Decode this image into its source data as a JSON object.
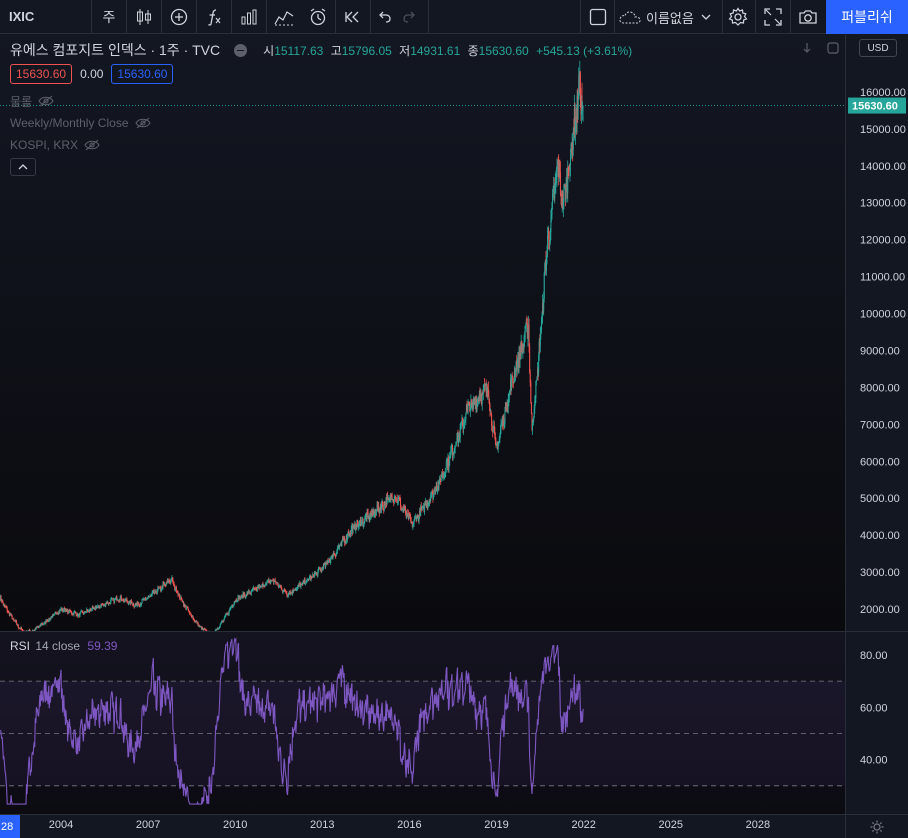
{
  "toolbar": {
    "symbol": "IXIC",
    "interval": "주",
    "layout_name": "이름없음",
    "publish_label": "퍼블리쉬"
  },
  "legend": {
    "title": "유에스 컴포지트 인덱스 · 1주 · TVC",
    "open_label": "시",
    "open": "15117.63",
    "high_label": "고",
    "high": "15796.05",
    "low_label": "저",
    "low": "14931.61",
    "close_label": "종",
    "close": "15630.60",
    "change": "+545.13 (+3.61%)",
    "bid": "15630.60",
    "spread": "0.00",
    "ask": "15630.60",
    "indicators": [
      "물롤",
      "Weekly/Monthly Close",
      "KOSPI, KRX"
    ]
  },
  "currency": "USD",
  "price_tag": "15630.60",
  "rsi_legend": {
    "name": "RSI",
    "params": "14 close",
    "value": "59.39"
  },
  "colors": {
    "background": "#131722",
    "up": "#26a69a",
    "down": "#ef5350",
    "rsi_line": "#7e57c2",
    "accent": "#2962ff"
  },
  "chart_data": [
    {
      "type": "candlestick",
      "title": "",
      "series_name": "",
      "x_ticks": [
        "28",
        "2004",
        "2007",
        "2010",
        "2013",
        "2016",
        "2019",
        "2022",
        "2025",
        "2028"
      ],
      "y_ticks": [
        2000,
        3000,
        4000,
        5000,
        6000,
        7000,
        8000,
        9000,
        10000,
        11000,
        12000,
        13000,
        14000,
        15000,
        16000
      ],
      "y_tick_labels": [
        "2000.00",
        "3000.00",
        "4000.00",
        "5000.00",
        "6000.00",
        "7000.00",
        "8000.00",
        "9000.00",
        "10000.00",
        "11000.00",
        "12000.00",
        "13000.00",
        "14000.00",
        "15000.00",
        "16000.00"
      ],
      "ylim": [
        1350,
        17000
      ],
      "xlim": [
        2001.9,
        2031.0
      ],
      "last_price": 15630.6,
      "key_points": [
        {
          "year": 2001.9,
          "close": 2300
        },
        {
          "year": 2002.7,
          "close": 1380
        },
        {
          "year": 2003.0,
          "close": 1400
        },
        {
          "year": 2004.0,
          "close": 2000
        },
        {
          "year": 2004.6,
          "close": 1850
        },
        {
          "year": 2006.0,
          "close": 2300
        },
        {
          "year": 2006.6,
          "close": 2100
        },
        {
          "year": 2007.8,
          "close": 2800
        },
        {
          "year": 2008.8,
          "close": 1500
        },
        {
          "year": 2009.2,
          "close": 1300
        },
        {
          "year": 2010.0,
          "close": 2250
        },
        {
          "year": 2011.3,
          "close": 2800
        },
        {
          "year": 2011.8,
          "close": 2400
        },
        {
          "year": 2013.0,
          "close": 3100
        },
        {
          "year": 2014.0,
          "close": 4150
        },
        {
          "year": 2015.5,
          "close": 5100
        },
        {
          "year": 2016.1,
          "close": 4300
        },
        {
          "year": 2017.0,
          "close": 5400
        },
        {
          "year": 2018.0,
          "close": 7400
        },
        {
          "year": 2018.7,
          "close": 8000
        },
        {
          "year": 2018.98,
          "close": 6300
        },
        {
          "year": 2019.5,
          "close": 8100
        },
        {
          "year": 2020.1,
          "close": 9700
        },
        {
          "year": 2020.22,
          "close": 6900
        },
        {
          "year": 2020.7,
          "close": 11500
        },
        {
          "year": 2021.1,
          "close": 14000
        },
        {
          "year": 2021.3,
          "close": 13000
        },
        {
          "year": 2021.85,
          "close": 16100
        },
        {
          "year": 2021.98,
          "close": 15630
        }
      ]
    },
    {
      "type": "line",
      "title": "",
      "series_name": "",
      "y_ticks": [
        40,
        60,
        80
      ],
      "y_tick_labels": [
        "40.00",
        "60.00",
        "80.00"
      ],
      "bands": [
        30,
        50,
        70
      ],
      "ylim": [
        20,
        88
      ],
      "last_value": 59.39
    }
  ]
}
